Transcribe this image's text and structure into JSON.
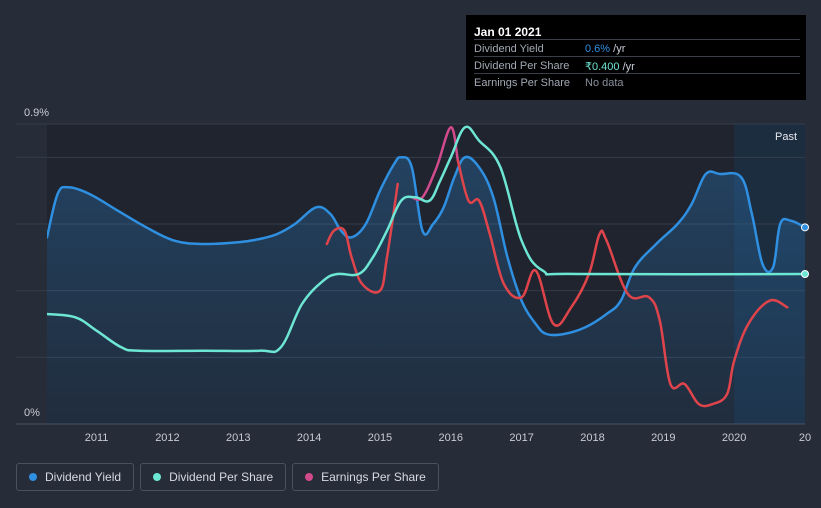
{
  "chart_data": {
    "type": "line",
    "y_ticks": [
      "0.9%",
      "0%"
    ],
    "x_ticks": [
      "2011",
      "2012",
      "2013",
      "2014",
      "2015",
      "2016",
      "2017",
      "2018",
      "2019",
      "2020",
      "20"
    ],
    "x_range": [
      2010.3,
      2021.0
    ],
    "y_range": [
      0,
      0.9
    ],
    "past_label": "Past",
    "past_start": 2020.0,
    "series": [
      {
        "name": "Dividend Yield",
        "color": "#2f8fe0",
        "x": [
          2010.3,
          2010.45,
          2010.6,
          2010.9,
          2011.3,
          2011.7,
          2012.1,
          2012.5,
          2013.0,
          2013.3,
          2013.55,
          2013.8,
          2014.1,
          2014.3,
          2014.45,
          2014.6,
          2014.8,
          2015.0,
          2015.2,
          2015.3,
          2015.45,
          2015.6,
          2015.75,
          2015.9,
          2016.05,
          2016.2,
          2016.4,
          2016.6,
          2016.8,
          2017.0,
          2017.2,
          2017.35,
          2017.6,
          2017.9,
          2018.2,
          2018.4,
          2018.6,
          2018.9,
          2019.2,
          2019.4,
          2019.6,
          2019.8,
          2020.1,
          2020.25,
          2020.4,
          2020.55,
          2020.65,
          2020.8,
          2021.0
        ],
        "y": [
          0.56,
          0.69,
          0.71,
          0.69,
          0.64,
          0.59,
          0.55,
          0.54,
          0.545,
          0.555,
          0.57,
          0.6,
          0.65,
          0.63,
          0.58,
          0.56,
          0.6,
          0.7,
          0.78,
          0.8,
          0.77,
          0.58,
          0.6,
          0.65,
          0.74,
          0.8,
          0.77,
          0.68,
          0.5,
          0.37,
          0.3,
          0.27,
          0.27,
          0.29,
          0.33,
          0.37,
          0.47,
          0.54,
          0.6,
          0.66,
          0.75,
          0.75,
          0.74,
          0.63,
          0.48,
          0.47,
          0.6,
          0.61,
          0.59
        ]
      },
      {
        "name": "Dividend Per Share",
        "color": "#6ee6d4",
        "x": [
          2010.3,
          2010.7,
          2011.0,
          2011.35,
          2011.6,
          2012.5,
          2013.3,
          2013.6,
          2013.9,
          2014.2,
          2014.4,
          2014.7,
          2014.9,
          2015.1,
          2015.3,
          2015.5,
          2015.7,
          2015.85,
          2016.0,
          2016.2,
          2016.4,
          2016.7,
          2017.0,
          2017.3,
          2017.8,
          2021.0
        ],
        "y": [
          0.33,
          0.32,
          0.28,
          0.23,
          0.22,
          0.22,
          0.22,
          0.23,
          0.36,
          0.43,
          0.45,
          0.45,
          0.5,
          0.58,
          0.67,
          0.68,
          0.67,
          0.73,
          0.8,
          0.89,
          0.85,
          0.77,
          0.55,
          0.46,
          0.45,
          0.45
        ]
      },
      {
        "name": "Earnings Per Share",
        "color": "#d04a8c",
        "x": [
          2014.25,
          2014.35,
          2014.5,
          2014.6,
          2014.75,
          2015.0,
          2015.1,
          2015.25,
          2015.45,
          2015.6,
          2015.8,
          2016.0,
          2016.1,
          2016.25,
          2016.4,
          2016.55,
          2016.75,
          2017.0,
          2017.2,
          2017.45,
          2017.7,
          2017.95,
          2018.1,
          2018.2,
          2018.5,
          2018.8,
          2018.95,
          2019.1,
          2019.3,
          2019.5,
          2019.7,
          2019.9,
          2020.0,
          2020.2,
          2020.5,
          2020.75
        ],
        "y": [
          0.54,
          0.58,
          0.58,
          0.5,
          0.42,
          0.4,
          0.5,
          0.72,
          0.68,
          0.68,
          0.77,
          0.89,
          0.79,
          0.67,
          0.67,
          0.57,
          0.42,
          0.38,
          0.46,
          0.3,
          0.35,
          0.45,
          0.57,
          0.55,
          0.39,
          0.38,
          0.31,
          0.12,
          0.12,
          0.06,
          0.06,
          0.09,
          0.19,
          0.3,
          0.37,
          0.35
        ]
      }
    ],
    "colors": {
      "bg": "#262c38",
      "plot_bg": "#1f242f",
      "past_bg": "#1d3045",
      "grid": "#353b48",
      "axis": "#c8ccd4"
    }
  },
  "tooltip": {
    "date": "Jan 01 2021",
    "rows": [
      {
        "label": "Dividend Yield",
        "value": "0.6%",
        "unit": " /yr",
        "color": "#2f8fe0"
      },
      {
        "label": "Dividend Per Share",
        "value": "₹0.400",
        "unit": " /yr",
        "color": "#6ee6d4"
      },
      {
        "label": "Earnings Per Share",
        "value": "No data",
        "unit": "",
        "color": "#8a909c"
      }
    ]
  },
  "legend": [
    {
      "label": "Dividend Yield",
      "color": "#2f8fe0"
    },
    {
      "label": "Dividend Per Share",
      "color": "#6ee6d4"
    },
    {
      "label": "Earnings Per Share",
      "color": "#d04a8c"
    }
  ]
}
